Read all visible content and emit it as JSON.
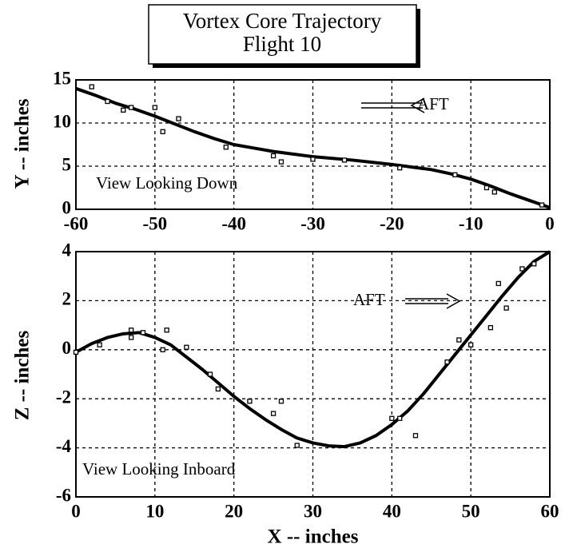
{
  "title": [
    "Vortex Core Trajectory",
    "Flight 10"
  ],
  "chart_data": [
    {
      "type": "line",
      "ylabel": "Y -- inches",
      "annotations": [
        "View Looking Down",
        "AFT"
      ],
      "arrow": "left",
      "grid": true,
      "xlim": [
        -60,
        0
      ],
      "xticks": [
        -60,
        -50,
        -40,
        -30,
        -20,
        -10,
        0
      ],
      "ylim": [
        0,
        15
      ],
      "yticks": [
        0,
        5,
        10,
        15
      ],
      "series": [
        {
          "style": "line",
          "color": "#000000",
          "x": [
            -60,
            -57.5,
            -55,
            -52.5,
            -50,
            -47.5,
            -45,
            -42.5,
            -40,
            -37.5,
            -35,
            -32.5,
            -30,
            -27.5,
            -25,
            -22.5,
            -20,
            -17.5,
            -15,
            -12.5,
            -10,
            -7.5,
            -5,
            -2.5,
            0
          ],
          "values": [
            14,
            13.2,
            12.3,
            11.6,
            10.8,
            9.9,
            9,
            8.2,
            7.5,
            7.1,
            6.7,
            6.4,
            6.1,
            5.9,
            5.7,
            5.45,
            5.2,
            4.9,
            4.6,
            4.1,
            3.5,
            2.7,
            1.8,
            1,
            0.2
          ]
        },
        {
          "style": "markers",
          "color": "#000000",
          "x": [
            -58,
            -56,
            -54,
            -53,
            -50,
            -49,
            -47,
            -41,
            -35,
            -34,
            -30,
            -26,
            -19,
            -12,
            -8,
            -7,
            -1
          ],
          "values": [
            14.2,
            12.5,
            11.5,
            11.8,
            11.8,
            9,
            10.5,
            7.2,
            6.2,
            5.5,
            5.8,
            5.7,
            4.8,
            4,
            2.5,
            2,
            0.5
          ]
        }
      ]
    },
    {
      "type": "line",
      "xlabel": "X -- inches",
      "ylabel": "Z -- inches",
      "annotations": [
        "View Looking Inboard",
        "AFT"
      ],
      "arrow": "right",
      "grid": true,
      "xlim": [
        0,
        60
      ],
      "xticks": [
        0,
        10,
        20,
        30,
        40,
        50,
        60
      ],
      "ylim": [
        -6,
        4
      ],
      "yticks": [
        -6,
        -4,
        -2,
        0,
        2,
        4
      ],
      "series": [
        {
          "style": "line",
          "color": "#000000",
          "x": [
            0,
            2,
            4,
            6,
            8,
            10,
            12,
            14,
            16,
            18,
            20,
            22,
            24,
            26,
            28,
            30,
            32,
            34,
            36,
            38,
            40,
            42,
            44,
            46,
            48,
            50,
            52,
            54,
            56,
            58,
            60
          ],
          "values": [
            -0.1,
            0.25,
            0.5,
            0.65,
            0.7,
            0.5,
            0.2,
            -0.3,
            -0.8,
            -1.35,
            -1.9,
            -2.4,
            -2.85,
            -3.25,
            -3.6,
            -3.8,
            -3.92,
            -3.95,
            -3.8,
            -3.5,
            -3.05,
            -2.5,
            -1.8,
            -1,
            -0.2,
            0.6,
            1.4,
            2.2,
            2.95,
            3.6,
            4
          ]
        },
        {
          "style": "markers",
          "color": "#000000",
          "x": [
            0,
            3,
            7,
            7,
            8.5,
            11,
            11.5,
            14,
            17,
            18,
            22,
            25,
            26,
            28,
            40,
            41,
            43,
            47,
            48.5,
            50,
            52.5,
            53.5,
            54.5,
            56.5,
            58
          ],
          "values": [
            -0.1,
            0.2,
            0.8,
            0.5,
            0.7,
            0,
            0.8,
            0.1,
            -1,
            -1.6,
            -2.1,
            -2.6,
            -2.1,
            -3.9,
            -2.8,
            -2.8,
            -3.5,
            -0.5,
            0.4,
            0.2,
            0.9,
            2.7,
            1.7,
            3.3,
            3.5
          ]
        }
      ]
    }
  ]
}
